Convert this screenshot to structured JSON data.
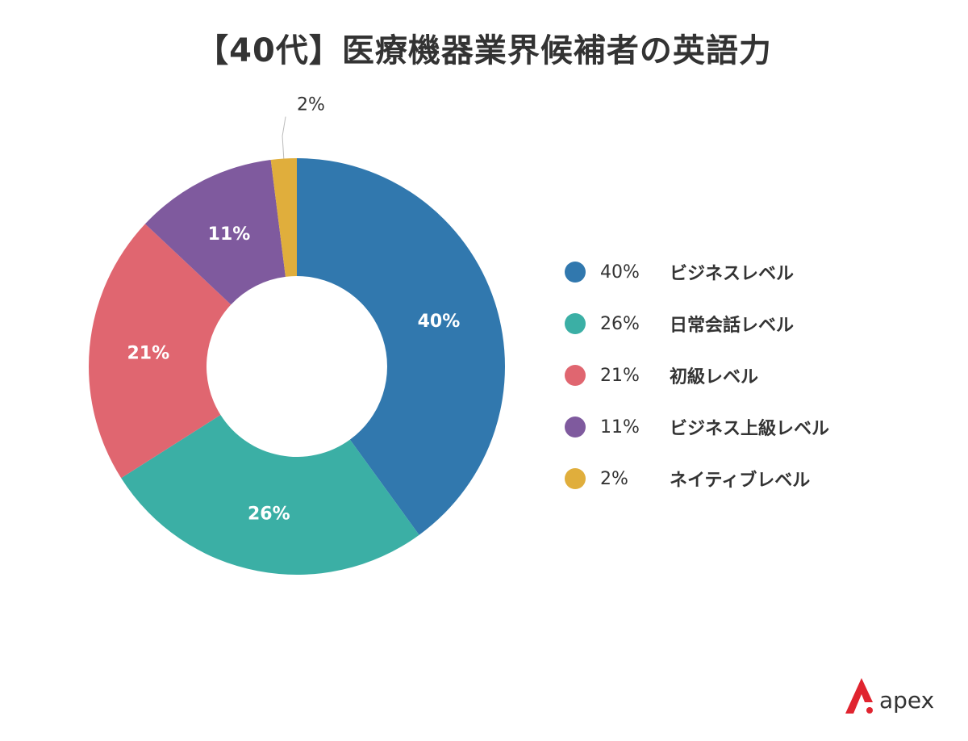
{
  "title": "【40代】医療機器業界候補者の英語力",
  "chart_data": {
    "type": "pie",
    "title": "【40代】医療機器業界候補者の英語力",
    "categories": [
      "ビジネスレベル",
      "日常会話レベル",
      "初級レベル",
      "ビジネス上級レベル",
      "ネイティブレベル"
    ],
    "values": [
      40,
      26,
      21,
      11,
      2
    ],
    "value_labels": [
      "40%",
      "26%",
      "21%",
      "11%",
      "2%"
    ],
    "colors": [
      "#3178AE",
      "#3BAFA5",
      "#E06670",
      "#7F5A9E",
      "#E0AE3C"
    ],
    "legend_position": "right",
    "donut": true
  },
  "legend": [
    {
      "percent": "40%",
      "label": "ビジネスレベル",
      "color": "#3178AE"
    },
    {
      "percent": "26%",
      "label": "日常会話レベル",
      "color": "#3BAFA5"
    },
    {
      "percent": "21%",
      "label": "初級レベル",
      "color": "#E06670"
    },
    {
      "percent": "11%",
      "label": "ビジネス上級レベル",
      "color": "#7F5A9E"
    },
    {
      "percent": "2%",
      "label": "ネイティブレベル",
      "color": "#E0AE3C"
    }
  ],
  "logo": {
    "text": "apex",
    "accent_color": "#E0242F"
  }
}
